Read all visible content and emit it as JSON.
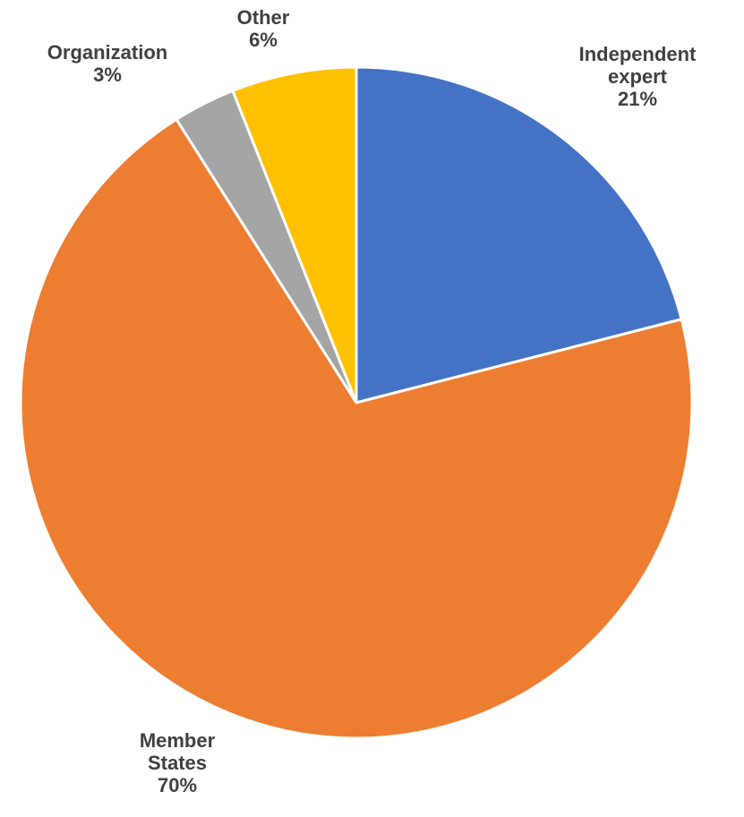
{
  "chart_data": {
    "type": "pie",
    "slices": [
      {
        "label": [
          "Independent",
          "expert"
        ],
        "value": 21,
        "value_label": "21%",
        "color": "#4472C4"
      },
      {
        "label": [
          "Member",
          "States"
        ],
        "value": 70,
        "value_label": "70%",
        "color": "#ED7D31"
      },
      {
        "label": [
          "Organization"
        ],
        "value": 3,
        "value_label": "3%",
        "color": "#A5A5A5"
      },
      {
        "label": [
          "Other"
        ],
        "value": 6,
        "value_label": "6%",
        "color": "#FFC000"
      }
    ],
    "start": "12 o'clock",
    "direction": "clockwise",
    "data_labels": "outside",
    "slice_border_color": "#FFFFFF",
    "label_color": "#404040",
    "legend": "none"
  }
}
